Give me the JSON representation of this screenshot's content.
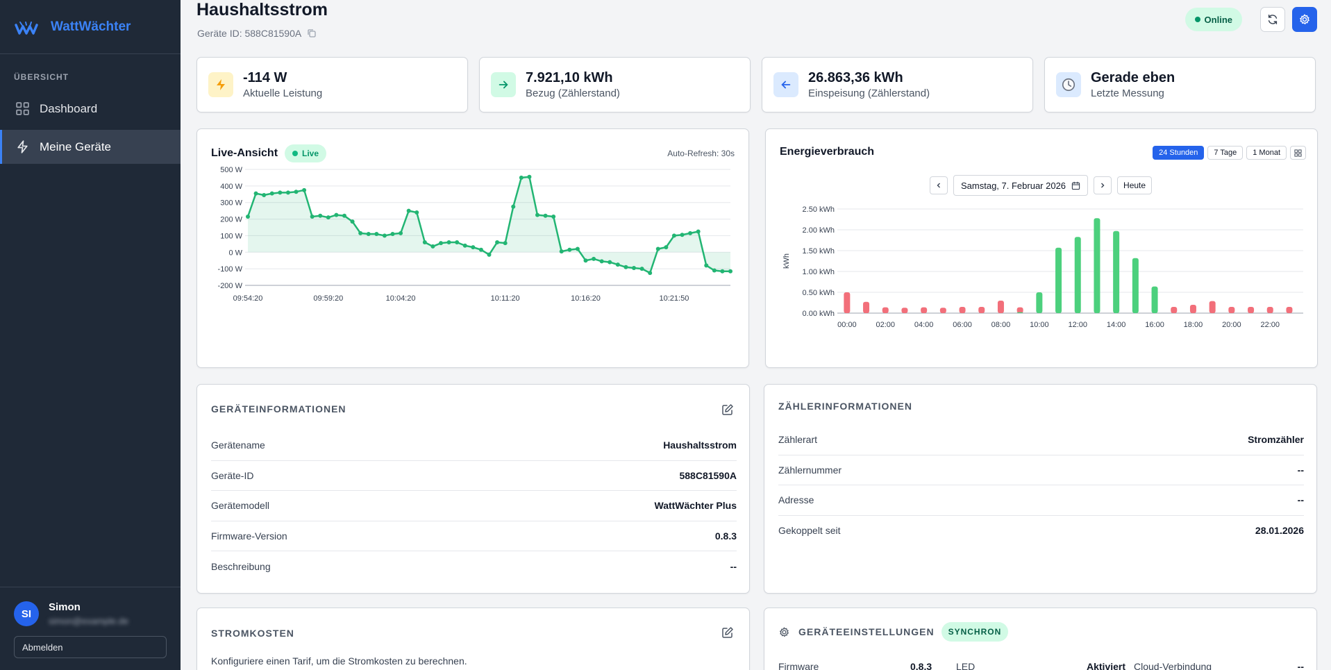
{
  "app": {
    "name": "WattWächter"
  },
  "sidebar": {
    "section_label": "ÜBERSICHT",
    "items": [
      {
        "label": "Dashboard",
        "icon": "grid-icon",
        "active": false
      },
      {
        "label": "Meine Geräte",
        "icon": "bolt-icon",
        "active": true
      }
    ],
    "user": {
      "initials": "SI",
      "name": "Simon",
      "email": "simon@example.de"
    },
    "logout_label": "Abmelden"
  },
  "header": {
    "title": "Haushaltsstrom",
    "device_id_label": "Geräte ID: 588C81590A",
    "status": "Online"
  },
  "stats": [
    {
      "value": "-114 W",
      "label": "Aktuelle Leistung",
      "icon": "bolt-icon",
      "bg": "#fef3c7",
      "fg": "#f59e0b"
    },
    {
      "value": "7.921,10 kWh",
      "label": "Bezug (Zählerstand)",
      "icon": "arrow-right-icon",
      "bg": "#d1fae5",
      "fg": "#059669"
    },
    {
      "value": "26.863,36 kWh",
      "label": "Einspeisung (Zählerstand)",
      "icon": "arrow-left-icon",
      "bg": "#dbeafe",
      "fg": "#2563eb"
    },
    {
      "value": "Gerade eben",
      "label": "Letzte Messung",
      "icon": "clock-icon",
      "bg": "#dbeafe",
      "fg": "#6b7280"
    }
  ],
  "live": {
    "title": "Live-Ansicht",
    "badge": "Live",
    "auto_refresh": "Auto-Refresh: 30s"
  },
  "energy": {
    "title": "Energieverbrauch",
    "ranges": [
      {
        "label": "24 Stunden",
        "active": true
      },
      {
        "label": "7 Tage",
        "active": false
      },
      {
        "label": "1 Monat",
        "active": false
      }
    ],
    "date_label": "Samstag, 7. Februar 2026",
    "today_label": "Heute"
  },
  "geraeteinfo": {
    "title": "GERÄTEINFORMATIONEN",
    "rows": [
      {
        "label": "Gerätename",
        "value": "Haushaltsstrom"
      },
      {
        "label": "Geräte-ID",
        "value": "588C81590A"
      },
      {
        "label": "Gerätemodell",
        "value": "WattWächter Plus"
      },
      {
        "label": "Firmware-Version",
        "value": "0.8.3"
      },
      {
        "label": "Beschreibung",
        "value": "--"
      }
    ]
  },
  "zaehlerinfo": {
    "title": "ZÄHLERINFORMATIONEN",
    "rows": [
      {
        "label": "Zählerart",
        "value": "Stromzähler"
      },
      {
        "label": "Zählernummer",
        "value": "--"
      },
      {
        "label": "Adresse",
        "value": "--"
      },
      {
        "label": "Gekoppelt seit",
        "value": "28.01.2026"
      }
    ]
  },
  "stromkosten": {
    "title": "STROMKOSTEN",
    "text": "Konfiguriere einen Tarif, um die Stromkosten zu berechnen."
  },
  "einstellungen": {
    "title": "GERÄTEEINSTELLUNGEN",
    "badge": "SYNCHRON",
    "items": [
      {
        "label": "Firmware",
        "value": "0.8.3"
      },
      {
        "label": "LED",
        "value": "Aktiviert"
      },
      {
        "label": "Cloud-Verbindung",
        "value": "--"
      }
    ]
  },
  "chart_data": [
    {
      "type": "area",
      "ylabel": "",
      "ylim": [
        -200,
        500
      ],
      "yticks": [
        "500 W",
        "400 W",
        "300 W",
        "200 W",
        "100 W",
        "0 W",
        "-100 W",
        "-200 W"
      ],
      "xticks": [
        "09:54:20",
        "09:59:20",
        "10:04:20",
        "10:11:20",
        "10:16:20",
        "10:21:50"
      ],
      "values": [
        215,
        355,
        345,
        355,
        360,
        360,
        365,
        375,
        215,
        220,
        210,
        225,
        220,
        185,
        115,
        110,
        110,
        100,
        110,
        115,
        250,
        240,
        60,
        35,
        55,
        60,
        60,
        40,
        30,
        15,
        -15,
        60,
        55,
        275,
        450,
        455,
        225,
        220,
        215,
        5,
        15,
        20,
        -50,
        -40,
        -55,
        -60,
        -75,
        -90,
        -95,
        -100,
        -125,
        20,
        30,
        100,
        105,
        115,
        125,
        -80,
        -110,
        -115,
        -115
      ],
      "color": "#22b573"
    },
    {
      "type": "bar",
      "ylabel": "kWh",
      "ylim": [
        0,
        2.5
      ],
      "yticks": [
        "2.50 kWh",
        "2.00 kWh",
        "1.50 kWh",
        "1.00 kWh",
        "0.50 kWh",
        "0.00 kWh"
      ],
      "xticks": [
        "00:00",
        "02:00",
        "04:00",
        "06:00",
        "08:00",
        "10:00",
        "12:00",
        "14:00",
        "16:00",
        "18:00",
        "20:00",
        "22:00"
      ],
      "series": [
        {
          "values": [
            0.5,
            0.27,
            0.14,
            0.13,
            0.14,
            0.13,
            0.15,
            0.15,
            0.3,
            0.14,
            0,
            0,
            0,
            0,
            0,
            0,
            0,
            0.15,
            0.2,
            0.29,
            0.15,
            0.15,
            0.15,
            0.15
          ],
          "color": "#f26f7a"
        },
        {
          "values": [
            0,
            0,
            0,
            0,
            0,
            0,
            0,
            0,
            0,
            0.02,
            0.5,
            1.57,
            1.83,
            2.28,
            1.97,
            1.32,
            0.64,
            0,
            0,
            0,
            0,
            0,
            0,
            0
          ],
          "color": "#4cd07d"
        }
      ]
    }
  ]
}
